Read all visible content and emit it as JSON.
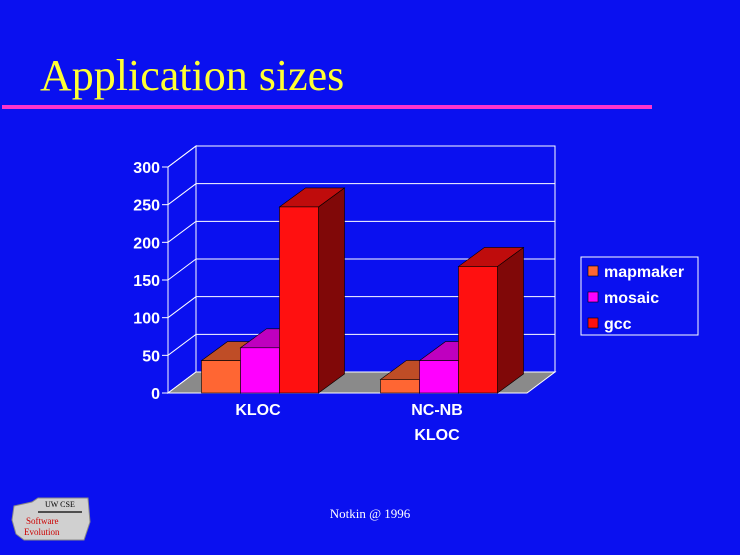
{
  "slide": {
    "title": "Application sizes",
    "footer": "Notkin @ 1996",
    "colors": {
      "background": "#0a10f0",
      "title": "#ffff33",
      "rule": "#ff33cc"
    }
  },
  "logo": {
    "top_text": "UW CSE",
    "line1": "Software",
    "line2": "Evolution"
  },
  "chart_data": {
    "type": "bar",
    "title": "",
    "categories": [
      [
        "KLOC"
      ],
      [
        "NC-NB",
        "KLOC"
      ]
    ],
    "series": [
      {
        "name": "mapmaker",
        "values": [
          43,
          18
        ],
        "color": "#ff6633"
      },
      {
        "name": "mosaic",
        "values": [
          60,
          43
        ],
        "color": "#ff00ff"
      },
      {
        "name": "gcc",
        "values": [
          247,
          168
        ],
        "color": "#ff1010"
      }
    ],
    "ylim": [
      0,
      300
    ],
    "yticks": [
      0,
      50,
      100,
      150,
      200,
      250,
      300
    ],
    "grid": true,
    "style": "3d",
    "legend_position": "right"
  }
}
